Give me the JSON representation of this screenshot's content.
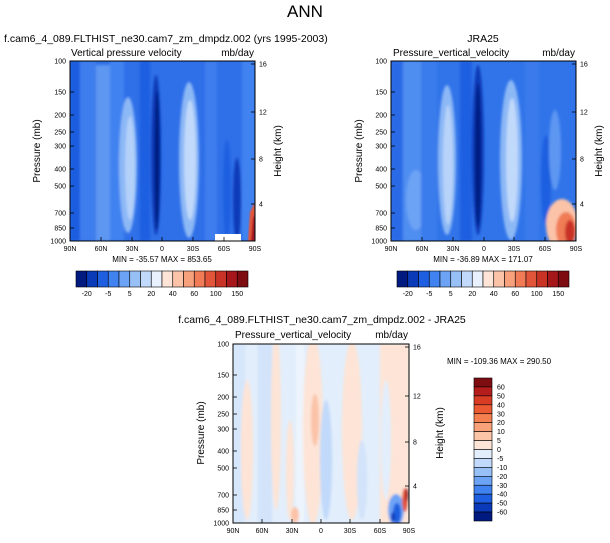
{
  "page": {
    "title": "ANN"
  },
  "scales": {
    "main": {
      "levels": [
        "-20",
        "-5",
        "5",
        "20",
        "40",
        "60",
        "100",
        "150"
      ],
      "colors": [
        "#001a80",
        "#0a3ab8",
        "#1e5ee0",
        "#3f82f0",
        "#6da3f5",
        "#97c0f7",
        "#c1d9fa",
        "#e8f1fd",
        "#fde4d6",
        "#fbc3a8",
        "#f7a07c",
        "#f07b56",
        "#e2553a",
        "#c83326",
        "#a5171a",
        "#7e0d12"
      ]
    },
    "diff": {
      "levels": [
        "60",
        "50",
        "40",
        "30",
        "20",
        "10",
        "5",
        "0",
        "-5",
        "-10",
        "-20",
        "-30",
        "-40",
        "-50",
        "-60"
      ],
      "colors": [
        "#7e0d12",
        "#b51d1d",
        "#d93c24",
        "#ec5a33",
        "#f5804f",
        "#f9a27a",
        "#fbc5a8",
        "#fde4d6",
        "#e2eefb",
        "#c1d9fa",
        "#97c0f7",
        "#6da3f5",
        "#3f82f0",
        "#1e5ee0",
        "#0a3ab8",
        "#001a80"
      ]
    }
  },
  "chart_data": [
    {
      "type": "heatmap",
      "title": "f.cam6_4_089.FLTHIST_ne30.cam7_zm_dmpdz.002 (yrs 1995-2003)",
      "left_subtitle": "Vertical pressure velocity",
      "units": "mb/day",
      "ylabel": "Pressure (mb)",
      "ylabel_right": "Height (km)",
      "x_ticks": [
        "90N",
        "60N",
        "30N",
        "0",
        "30S",
        "60S",
        "90S"
      ],
      "y_ticks": [
        "100",
        "150",
        "200",
        "250",
        "300",
        "400",
        "500",
        "700",
        "850",
        "1000"
      ],
      "y_ticks_right": [
        "16",
        "12",
        "8",
        "4"
      ],
      "min": -35.57,
      "max": 853.65,
      "stats": "MIN = -35.57   MAX = 853.65"
    },
    {
      "type": "heatmap",
      "title": "JRA25",
      "left_subtitle": "Pressure_vertical_velocity",
      "units": "mb/day",
      "ylabel": "Pressure (mb)",
      "ylabel_right": "Height (km)",
      "x_ticks": [
        "90N",
        "60N",
        "30N",
        "0",
        "30S",
        "60S",
        "90S"
      ],
      "y_ticks": [
        "100",
        "150",
        "200",
        "250",
        "300",
        "400",
        "500",
        "700",
        "850",
        "1000"
      ],
      "y_ticks_right": [
        "16",
        "12",
        "8",
        "4"
      ],
      "min": -36.89,
      "max": 171.07,
      "stats": "MIN = -36.89   MAX = 171.07"
    },
    {
      "type": "heatmap",
      "title": "f.cam6_4_089.FLTHIST_ne30.cam7_zm_dmpdz.002 - JRA25",
      "left_subtitle": "Pressure_vertical_velocity",
      "units": "mb/day",
      "ylabel": "Pressure (mb)",
      "ylabel_right": "Height (km)",
      "x_ticks": [
        "90N",
        "60N",
        "30N",
        "0",
        "30S",
        "60S",
        "90S"
      ],
      "y_ticks": [
        "100",
        "150",
        "200",
        "250",
        "300",
        "400",
        "500",
        "700",
        "850",
        "1000"
      ],
      "y_ticks_right": [
        "16",
        "12",
        "8",
        "4"
      ],
      "min": -109.36,
      "max": 290.5,
      "stats": "MIN = -109.36  MAX = 290.50"
    }
  ]
}
